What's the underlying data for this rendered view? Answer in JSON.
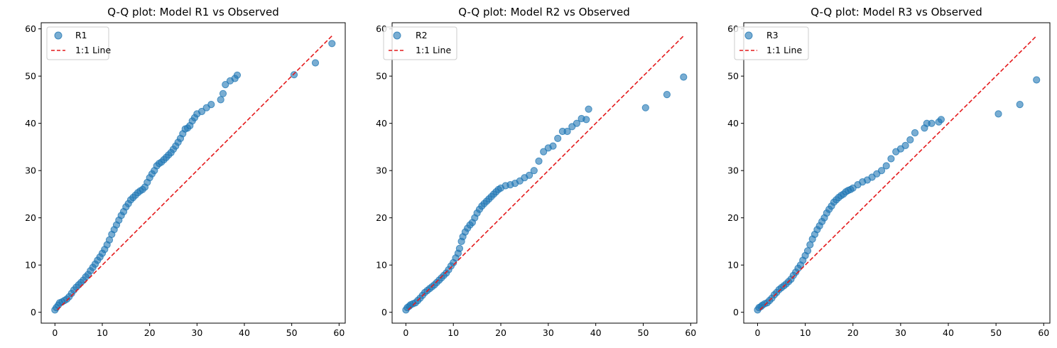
{
  "chart_data": [
    {
      "type": "scatter",
      "title": "Q-Q plot: Model R1 vs Observed",
      "xlabel": "",
      "ylabel": "",
      "xlim": [
        -2.9,
        61.3
      ],
      "ylim": [
        -2.3,
        61.3
      ],
      "xticks": [
        0,
        10,
        20,
        30,
        40,
        50,
        60
      ],
      "yticks": [
        0,
        10,
        20,
        30,
        40,
        50,
        60
      ],
      "grid": false,
      "legend": {
        "placement": "top-left",
        "entries": [
          "R1",
          "1:1 Line"
        ]
      },
      "series": [
        {
          "name": "R1",
          "kind": "points",
          "color": "#1f77b4",
          "x": [
            0.0,
            0.3,
            0.7,
            1.0,
            1.5,
            2.0,
            2.5,
            3.0,
            3.5,
            4.0,
            4.5,
            5.0,
            5.5,
            6.0,
            6.5,
            7.0,
            7.5,
            8.0,
            8.5,
            9.0,
            9.5,
            10.0,
            10.5,
            11.0,
            11.5,
            12.0,
            12.5,
            13.0,
            13.5,
            14.0,
            14.5,
            15.0,
            15.5,
            16.0,
            16.5,
            17.0,
            17.5,
            18.0,
            18.5,
            19.0,
            19.5,
            20.0,
            20.5,
            21.0,
            21.5,
            22.0,
            22.5,
            23.0,
            23.5,
            24.0,
            24.5,
            25.0,
            25.5,
            26.0,
            26.5,
            27.0,
            27.5,
            28.0,
            28.5,
            29.0,
            29.5,
            30.0,
            31.0,
            32.0,
            33.0,
            35.0,
            35.5,
            36.0,
            37.0,
            38.0,
            38.5,
            50.5,
            55.0,
            58.5
          ],
          "y": [
            0.5,
            1.0,
            1.5,
            2.0,
            2.2,
            2.5,
            2.8,
            3.3,
            4.0,
            4.7,
            5.3,
            5.8,
            6.3,
            6.8,
            7.5,
            8.0,
            8.8,
            9.5,
            10.2,
            11.0,
            11.7,
            12.5,
            13.3,
            14.3,
            15.3,
            16.5,
            17.5,
            18.5,
            19.5,
            20.5,
            21.3,
            22.3,
            23.0,
            23.8,
            24.3,
            24.8,
            25.3,
            25.7,
            26.0,
            26.5,
            27.5,
            28.5,
            29.3,
            30.0,
            31.0,
            31.5,
            31.8,
            32.3,
            32.8,
            33.3,
            33.8,
            34.5,
            35.2,
            36.0,
            36.8,
            37.8,
            38.8,
            39.0,
            39.5,
            40.5,
            41.2,
            42.0,
            42.5,
            43.3,
            44.0,
            45.0,
            46.3,
            48.2,
            49.0,
            49.5,
            50.2,
            50.3,
            52.8,
            56.9
          ]
        },
        {
          "name": "1:1 Line",
          "kind": "dashed-line",
          "color": "#e41a1c",
          "x": [
            0.5,
            58.5
          ],
          "y": [
            0.5,
            58.5
          ]
        }
      ]
    },
    {
      "type": "scatter",
      "title": "Q-Q plot: Model R2 vs Observed",
      "xlabel": "",
      "ylabel": "",
      "xlim": [
        -2.9,
        61.3
      ],
      "ylim": [
        -2.3,
        61.3
      ],
      "xticks": [
        0,
        10,
        20,
        30,
        40,
        50,
        60
      ],
      "yticks": [
        0,
        10,
        20,
        30,
        40,
        50,
        60
      ],
      "grid": false,
      "legend": {
        "placement": "top-left",
        "entries": [
          "R2",
          "1:1 Line"
        ]
      },
      "series": [
        {
          "name": "R2",
          "kind": "points",
          "color": "#1f77b4",
          "x": [
            0.0,
            0.3,
            0.7,
            1.0,
            1.5,
            2.0,
            2.5,
            3.0,
            3.5,
            4.0,
            4.5,
            5.0,
            5.5,
            6.0,
            6.5,
            7.0,
            7.5,
            8.0,
            8.5,
            9.0,
            9.5,
            10.0,
            10.5,
            11.0,
            11.3,
            11.7,
            12.0,
            12.5,
            13.0,
            13.5,
            14.0,
            14.5,
            15.0,
            15.5,
            16.0,
            16.5,
            17.0,
            17.5,
            18.0,
            18.5,
            19.0,
            19.5,
            20.0,
            21.0,
            22.0,
            23.0,
            24.0,
            25.0,
            26.0,
            27.0,
            28.0,
            29.0,
            30.0,
            31.0,
            32.0,
            33.0,
            34.0,
            35.0,
            36.0,
            37.0,
            38.0,
            38.5,
            50.5,
            55.0,
            58.5
          ],
          "y": [
            0.5,
            1.0,
            1.3,
            1.6,
            1.8,
            2.0,
            2.5,
            3.0,
            3.6,
            4.2,
            4.6,
            5.0,
            5.4,
            5.8,
            6.3,
            6.8,
            7.3,
            7.8,
            8.3,
            9.0,
            9.8,
            10.5,
            11.5,
            12.5,
            13.5,
            15.0,
            16.0,
            17.0,
            17.8,
            18.5,
            19.0,
            20.0,
            21.0,
            21.8,
            22.5,
            23.0,
            23.5,
            24.0,
            24.5,
            25.0,
            25.5,
            26.0,
            26.3,
            26.8,
            27.0,
            27.3,
            27.8,
            28.5,
            29.0,
            30.0,
            32.0,
            34.0,
            34.8,
            35.2,
            36.8,
            38.3,
            38.3,
            39.3,
            40.0,
            41.0,
            40.8,
            43.0,
            43.3,
            46.1,
            49.8
          ]
        },
        {
          "name": "1:1 Line",
          "kind": "dashed-line",
          "color": "#e41a1c",
          "x": [
            0.5,
            58.5
          ],
          "y": [
            0.5,
            58.5
          ]
        }
      ]
    },
    {
      "type": "scatter",
      "title": "Q-Q plot: Model R3 vs Observed",
      "xlabel": "",
      "ylabel": "",
      "xlim": [
        -2.9,
        61.3
      ],
      "ylim": [
        -2.3,
        61.3
      ],
      "xticks": [
        0,
        10,
        20,
        30,
        40,
        50,
        60
      ],
      "yticks": [
        0,
        10,
        20,
        30,
        40,
        50,
        60
      ],
      "grid": false,
      "legend": {
        "placement": "top-left",
        "entries": [
          "R3",
          "1:1 Line"
        ]
      },
      "series": [
        {
          "name": "R3",
          "kind": "points",
          "color": "#1f77b4",
          "x": [
            0.0,
            0.3,
            0.7,
            1.0,
            1.5,
            2.0,
            2.5,
            3.0,
            3.5,
            4.0,
            4.5,
            5.0,
            5.5,
            6.0,
            6.5,
            7.0,
            7.5,
            8.0,
            8.5,
            9.0,
            9.5,
            10.0,
            10.5,
            11.0,
            11.5,
            12.0,
            12.5,
            13.0,
            13.5,
            14.0,
            14.5,
            15.0,
            15.5,
            16.0,
            16.5,
            17.0,
            17.5,
            18.0,
            18.5,
            19.0,
            19.5,
            20.0,
            21.0,
            22.0,
            23.0,
            24.0,
            25.0,
            26.0,
            27.0,
            28.0,
            29.0,
            30.0,
            31.0,
            32.0,
            33.0,
            35.0,
            35.5,
            36.5,
            38.0,
            38.5,
            50.5,
            55.0,
            58.5
          ],
          "y": [
            0.5,
            1.0,
            1.2,
            1.5,
            1.8,
            2.0,
            2.5,
            3.0,
            3.7,
            4.2,
            4.8,
            5.2,
            5.6,
            6.0,
            6.5,
            7.0,
            7.8,
            8.5,
            9.3,
            10.0,
            11.0,
            12.0,
            13.0,
            14.3,
            15.5,
            16.5,
            17.5,
            18.3,
            19.2,
            20.0,
            21.0,
            21.8,
            22.5,
            23.3,
            23.8,
            24.3,
            24.7,
            25.0,
            25.5,
            25.8,
            26.0,
            26.3,
            27.0,
            27.6,
            28.0,
            28.6,
            29.3,
            30.0,
            31.0,
            32.5,
            34.0,
            34.6,
            35.3,
            36.5,
            38.0,
            39.0,
            40.0,
            40.0,
            40.3,
            40.8,
            42.0,
            44.0,
            49.2
          ]
        },
        {
          "name": "1:1 Line",
          "kind": "dashed-line",
          "color": "#e41a1c",
          "x": [
            0.5,
            58.5
          ],
          "y": [
            0.5,
            58.5
          ]
        }
      ]
    }
  ]
}
